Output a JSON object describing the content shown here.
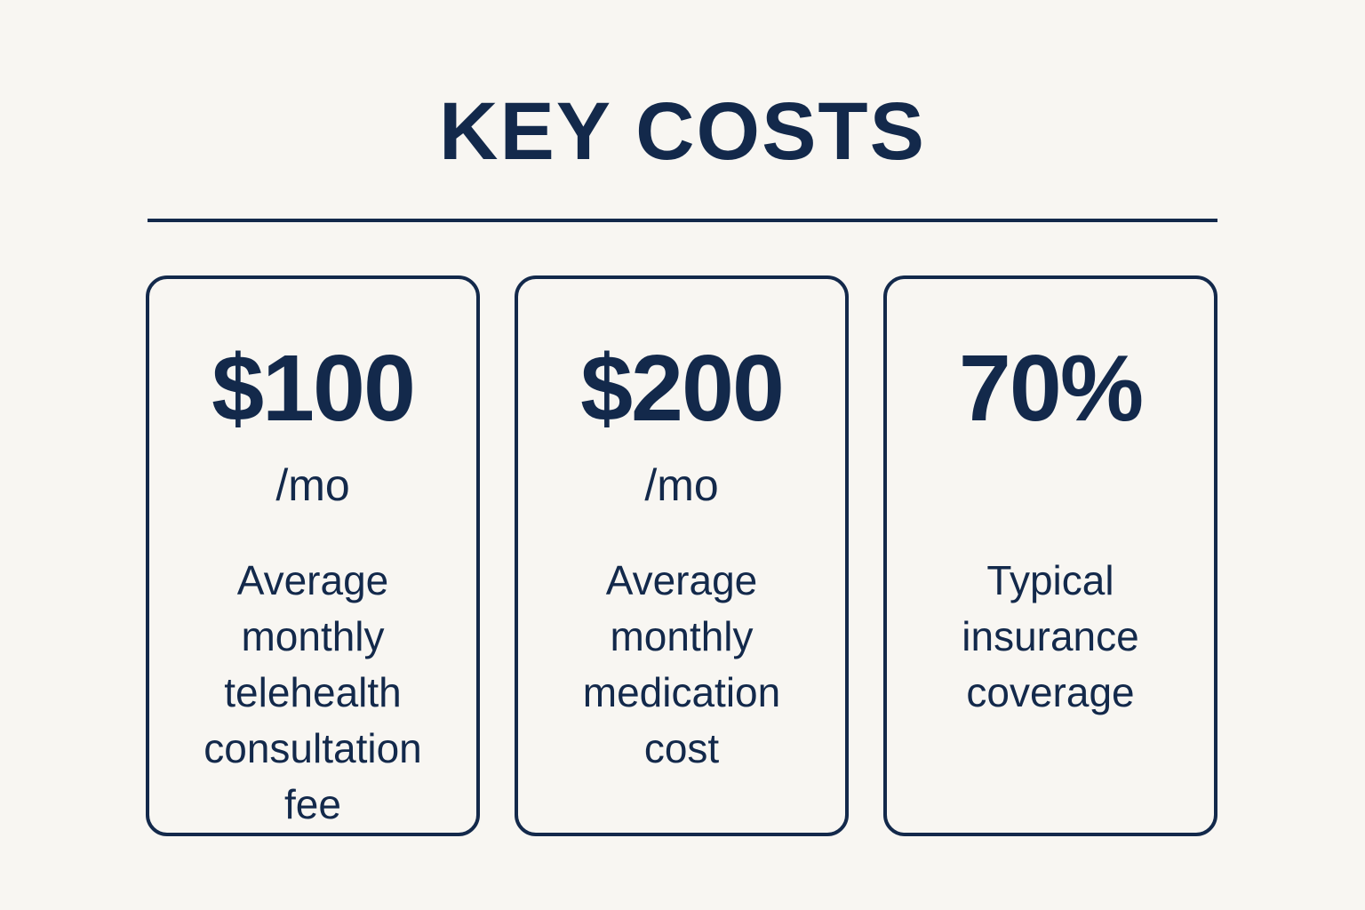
{
  "title": "KEY COSTS",
  "colors": {
    "background": "#f8f6f2",
    "primary": "#13294b"
  },
  "cards": [
    {
      "value": "$100",
      "unit": "/mo",
      "description_lines": [
        "Average",
        "monthly",
        "telehealth",
        "consultation",
        "fee"
      ]
    },
    {
      "value": "$200",
      "unit": "/mo",
      "description_lines": [
        "Average",
        "monthly",
        "medication",
        "cost"
      ]
    },
    {
      "value": "70%",
      "unit": "",
      "description_lines": [
        "Typical",
        "insurance",
        "coverage"
      ]
    }
  ]
}
